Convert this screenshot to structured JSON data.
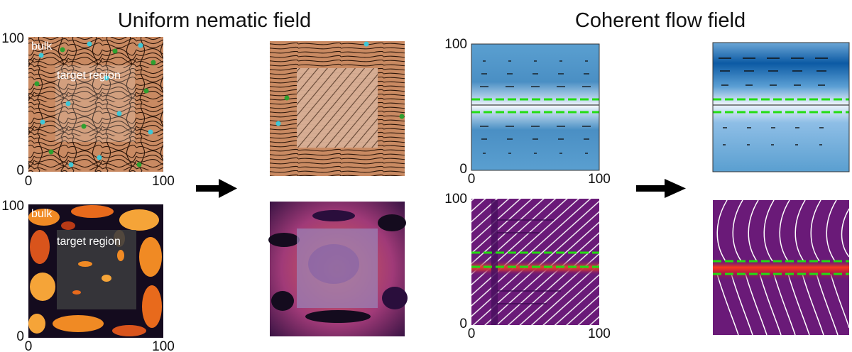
{
  "titles": {
    "left": "Uniform nematic field",
    "right": "Coherent flow field"
  },
  "labels": {
    "bulk": "bulk",
    "target_region": "target region"
  },
  "axes": {
    "min": "0",
    "max": "100"
  },
  "colors": {
    "nematic_base": "#c98a62",
    "director_lines": "#2a1408",
    "flow_blue": "#4a8fc4",
    "flow_white": "#f4f8fc",
    "magma_dark": "#140b1e",
    "magma_orange": "#f08a24",
    "purple_bg": "#6a1a78",
    "green_dashed": "#22dd11",
    "defect_cyan": "#3fc7d6",
    "defect_green": "#2fa02f",
    "arrow": "#000000"
  }
}
